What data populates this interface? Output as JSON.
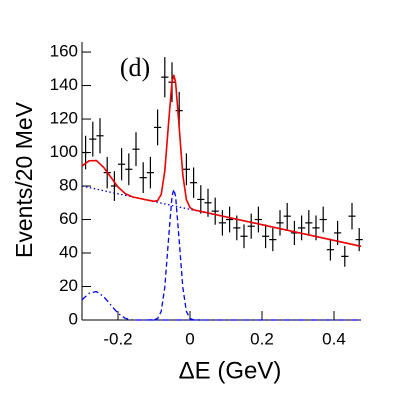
{
  "chart_data": {
    "type": "scatter",
    "annotation": "(d)",
    "x_label": "ΔE (GeV)",
    "y_label": "Events/20 MeV",
    "xlim": [
      -0.3,
      0.475
    ],
    "ylim": [
      0,
      166
    ],
    "xticks": [
      -0.2,
      0,
      0.2,
      0.4
    ],
    "yticks": [
      0,
      20,
      40,
      60,
      80,
      100,
      120,
      140,
      160
    ],
    "series": [
      {
        "style": "points",
        "color": "#000000",
        "x_error": 0.01,
        "x": [
          -0.29,
          -0.27,
          -0.25,
          -0.23,
          -0.21,
          -0.19,
          -0.17,
          -0.15,
          -0.13,
          -0.11,
          -0.09,
          -0.07,
          -0.05,
          -0.03,
          -0.01,
          0.01,
          0.03,
          0.05,
          0.07,
          0.09,
          0.11,
          0.13,
          0.15,
          0.17,
          0.19,
          0.21,
          0.23,
          0.25,
          0.27,
          0.29,
          0.31,
          0.33,
          0.35,
          0.37,
          0.39,
          0.41,
          0.43,
          0.45,
          0.47
        ],
        "values": [
          100,
          108,
          110,
          88,
          80,
          93,
          90,
          102,
          85,
          88,
          115,
          145,
          142,
          125,
          90,
          82,
          72,
          70,
          65,
          58,
          60,
          55,
          50,
          56,
          60,
          50,
          48,
          58,
          62,
          52,
          55,
          58,
          55,
          60,
          42,
          52,
          38,
          62,
          48
        ],
        "errors": [
          10,
          10.4,
          10.5,
          9.4,
          8.9,
          9.6,
          9.5,
          10.1,
          9.2,
          9.4,
          10.7,
          12,
          11.9,
          11.2,
          9.5,
          9.1,
          8.5,
          8.4,
          8.1,
          7.6,
          7.7,
          7.4,
          7.1,
          7.5,
          7.7,
          7.1,
          6.9,
          7.6,
          7.9,
          7.2,
          7.4,
          7.6,
          7.4,
          7.7,
          6.5,
          7.2,
          6.2,
          7.9,
          6.9
        ]
      },
      {
        "style": "dotted",
        "color": "#0000cc",
        "x": [
          -0.3,
          0.48
        ],
        "values": [
          80,
          44
        ]
      },
      {
        "style": "dashed",
        "color": "#0000ee",
        "x": [
          -0.12,
          -0.1,
          -0.09,
          -0.08,
          -0.07,
          -0.06,
          -0.05,
          -0.045,
          -0.04,
          -0.03,
          -0.02,
          -0.01,
          0,
          0.01,
          0.03
        ],
        "values": [
          0,
          0.1,
          0.9,
          5.1,
          19.5,
          47.3,
          73.8,
          78,
          73.8,
          47.3,
          19.5,
          5.1,
          0.9,
          0.1,
          0
        ]
      },
      {
        "style": "dashdot",
        "color": "#0000ee",
        "x": [
          -0.3,
          -0.28,
          -0.26,
          -0.24,
          -0.22,
          -0.2,
          -0.18,
          -0.16,
          0.48
        ],
        "values": [
          12,
          16,
          17,
          14,
          9,
          4,
          1,
          0,
          0
        ]
      },
      {
        "style": "solid",
        "color": "#ee0000",
        "x": [
          -0.3,
          -0.28,
          -0.26,
          -0.24,
          -0.22,
          -0.2,
          -0.18,
          -0.16,
          -0.12,
          -0.1,
          -0.09,
          -0.08,
          -0.07,
          -0.06,
          -0.05,
          -0.045,
          -0.04,
          -0.03,
          -0.02,
          -0.01,
          0,
          0.01,
          0.48
        ],
        "values": [
          92,
          95.1,
          95.2,
          91.2,
          85.3,
          79.4,
          75.5,
          73.5,
          71.7,
          70.9,
          71.3,
          75,
          88.9,
          116.3,
          142.3,
          146.3,
          141.9,
          114.9,
          86.7,
          71.8,
          67.1,
          65.8,
          44
        ]
      }
    ]
  }
}
